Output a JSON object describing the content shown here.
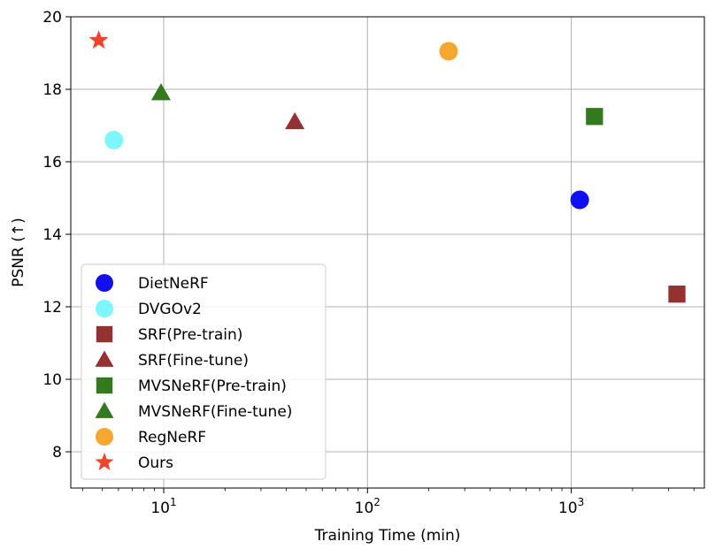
{
  "chart_data": {
    "type": "scatter",
    "xlabel": "Training Time (min)",
    "ylabel": "PSNR (↑)",
    "x_scale": "log",
    "xlim": [
      3.5,
      4500
    ],
    "ylim": [
      7,
      20
    ],
    "grid": true,
    "legend_position": "lower-left",
    "x_ticks": [
      {
        "value": 10,
        "base": "10",
        "exp": "1"
      },
      {
        "value": 100,
        "base": "10",
        "exp": "2"
      },
      {
        "value": 1000,
        "base": "10",
        "exp": "3"
      }
    ],
    "y_ticks": [
      {
        "value": 8,
        "label": "8"
      },
      {
        "value": 10,
        "label": "10"
      },
      {
        "value": 12,
        "label": "12"
      },
      {
        "value": 14,
        "label": "14"
      },
      {
        "value": 16,
        "label": "16"
      },
      {
        "value": 18,
        "label": "18"
      },
      {
        "value": 20,
        "label": "20"
      }
    ],
    "series": [
      {
        "name": "DietNeRF",
        "marker": "circle",
        "color": "#0f0ff0",
        "x": 1100,
        "y": 14.95
      },
      {
        "name": "DVGOv2",
        "marker": "circle",
        "color": "#7ef7fb",
        "x": 5.7,
        "y": 16.6
      },
      {
        "name": "SRF(Pre-train)",
        "marker": "square",
        "color": "#943232",
        "x": 3300,
        "y": 12.35
      },
      {
        "name": "SRF(Fine-tune)",
        "marker": "triangle",
        "color": "#943232",
        "x": 44,
        "y": 17.1
      },
      {
        "name": "MVSNeRF(Pre-train)",
        "marker": "square",
        "color": "#337a1e",
        "x": 1300,
        "y": 17.25
      },
      {
        "name": "MVSNeRF(Fine-tune)",
        "marker": "triangle",
        "color": "#337a1e",
        "x": 9.7,
        "y": 17.9
      },
      {
        "name": "RegNeRF",
        "marker": "circle",
        "color": "#f4a830",
        "x": 250,
        "y": 19.05
      },
      {
        "name": "Ours",
        "marker": "star",
        "color": "#f0452c",
        "x": 4.8,
        "y": 19.35
      }
    ]
  }
}
